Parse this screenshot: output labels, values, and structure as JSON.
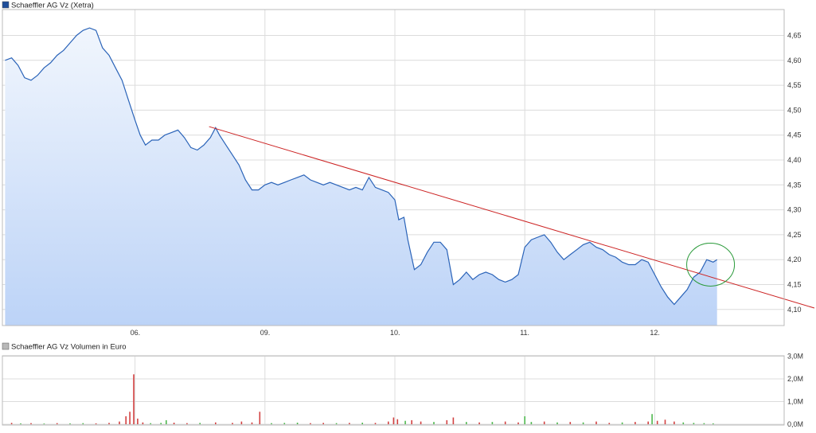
{
  "colors": {
    "price_line": "#2a63b8",
    "price_fill_top": "#f1f6fd",
    "price_fill_bottom": "#bcd3f7",
    "trend_line": "#cc2222",
    "highlight_circle": "#2a9a3a",
    "grid": "#dcdcdc",
    "vol_up": "#4fb84f",
    "vol_down": "#d24141",
    "price_legend_swatch": "#1f4e9a",
    "volume_legend_swatch": "#b8b8b8"
  },
  "chart_data": [
    {
      "type": "line",
      "title": "Schaeffler AG Vz (Xetra)",
      "x_tick_labels": [
        "06.",
        "09.",
        "10.",
        "11.",
        "12."
      ],
      "y_tick_labels": [
        "4,65",
        "4,60",
        "4,55",
        "4,50",
        "4,45",
        "4,40",
        "4,35",
        "4,30",
        "4,25",
        "4,20",
        "4,15",
        "4,10"
      ],
      "y_ticks": [
        4.65,
        4.6,
        4.55,
        4.5,
        4.45,
        4.4,
        4.35,
        4.3,
        4.25,
        4.2,
        4.15,
        4.1
      ],
      "ylim": [
        4.05,
        4.68
      ],
      "x_range": [
        0,
        6.15
      ],
      "x_unit": "trading days since start of window (day boundaries at 1,2,3,4,5)",
      "grid": true,
      "series": [
        {
          "values": [
            [
              0.0,
              4.6
            ],
            [
              0.05,
              4.605
            ],
            [
              0.1,
              4.59
            ],
            [
              0.15,
              4.565
            ],
            [
              0.2,
              4.56
            ],
            [
              0.25,
              4.57
            ],
            [
              0.3,
              4.585
            ],
            [
              0.35,
              4.595
            ],
            [
              0.4,
              4.61
            ],
            [
              0.45,
              4.62
            ],
            [
              0.5,
              4.635
            ],
            [
              0.55,
              4.65
            ],
            [
              0.6,
              4.66
            ],
            [
              0.65,
              4.665
            ],
            [
              0.7,
              4.66
            ],
            [
              0.75,
              4.625
            ],
            [
              0.8,
              4.61
            ],
            [
              0.85,
              4.585
            ],
            [
              0.9,
              4.56
            ],
            [
              0.95,
              4.52
            ],
            [
              1.0,
              4.48
            ],
            [
              1.04,
              4.45
            ],
            [
              1.08,
              4.43
            ],
            [
              1.13,
              4.44
            ],
            [
              1.18,
              4.44
            ],
            [
              1.23,
              4.45
            ],
            [
              1.28,
              4.455
            ],
            [
              1.33,
              4.46
            ],
            [
              1.38,
              4.445
            ],
            [
              1.43,
              4.425
            ],
            [
              1.48,
              4.42
            ],
            [
              1.53,
              4.43
            ],
            [
              1.58,
              4.445
            ],
            [
              1.62,
              4.465
            ],
            [
              1.65,
              4.45
            ],
            [
              1.7,
              4.43
            ],
            [
              1.75,
              4.41
            ],
            [
              1.8,
              4.39
            ],
            [
              1.85,
              4.36
            ],
            [
              1.9,
              4.34
            ],
            [
              1.95,
              4.34
            ],
            [
              2.0,
              4.35
            ],
            [
              2.05,
              4.355
            ],
            [
              2.1,
              4.35
            ],
            [
              2.15,
              4.355
            ],
            [
              2.2,
              4.36
            ],
            [
              2.25,
              4.365
            ],
            [
              2.3,
              4.37
            ],
            [
              2.35,
              4.36
            ],
            [
              2.4,
              4.355
            ],
            [
              2.45,
              4.35
            ],
            [
              2.5,
              4.355
            ],
            [
              2.55,
              4.35
            ],
            [
              2.6,
              4.345
            ],
            [
              2.65,
              4.34
            ],
            [
              2.7,
              4.345
            ],
            [
              2.75,
              4.34
            ],
            [
              2.8,
              4.365
            ],
            [
              2.85,
              4.345
            ],
            [
              2.9,
              4.34
            ],
            [
              2.95,
              4.335
            ],
            [
              3.0,
              4.32
            ],
            [
              3.03,
              4.28
            ],
            [
              3.07,
              4.285
            ],
            [
              3.1,
              4.24
            ],
            [
              3.15,
              4.18
            ],
            [
              3.2,
              4.19
            ],
            [
              3.25,
              4.215
            ],
            [
              3.3,
              4.235
            ],
            [
              3.35,
              4.235
            ],
            [
              3.4,
              4.22
            ],
            [
              3.45,
              4.15
            ],
            [
              3.5,
              4.16
            ],
            [
              3.55,
              4.175
            ],
            [
              3.6,
              4.16
            ],
            [
              3.65,
              4.17
            ],
            [
              3.7,
              4.175
            ],
            [
              3.75,
              4.17
            ],
            [
              3.8,
              4.16
            ],
            [
              3.85,
              4.155
            ],
            [
              3.9,
              4.16
            ],
            [
              3.95,
              4.17
            ],
            [
              4.0,
              4.225
            ],
            [
              4.05,
              4.24
            ],
            [
              4.1,
              4.245
            ],
            [
              4.15,
              4.25
            ],
            [
              4.2,
              4.235
            ],
            [
              4.25,
              4.215
            ],
            [
              4.3,
              4.2
            ],
            [
              4.35,
              4.21
            ],
            [
              4.4,
              4.22
            ],
            [
              4.45,
              4.23
            ],
            [
              4.5,
              4.235
            ],
            [
              4.55,
              4.225
            ],
            [
              4.6,
              4.22
            ],
            [
              4.65,
              4.21
            ],
            [
              4.7,
              4.205
            ],
            [
              4.75,
              4.195
            ],
            [
              4.8,
              4.19
            ],
            [
              4.85,
              4.19
            ],
            [
              4.9,
              4.2
            ],
            [
              4.95,
              4.195
            ],
            [
              5.0,
              4.17
            ],
            [
              5.05,
              4.145
            ],
            [
              5.1,
              4.125
            ],
            [
              5.15,
              4.11
            ],
            [
              5.2,
              4.125
            ],
            [
              5.25,
              4.14
            ],
            [
              5.3,
              4.165
            ],
            [
              5.35,
              4.175
            ],
            [
              5.4,
              4.2
            ],
            [
              5.45,
              4.195
            ],
            [
              5.48,
              4.2
            ]
          ]
        }
      ],
      "trendline": {
        "x": [
          1.57,
          6.15
        ],
        "y": [
          4.467,
          4.109
        ]
      },
      "highlight_circle": {
        "x": 5.43,
        "y": 4.19
      }
    },
    {
      "type": "bar",
      "title": "Schaeffler AG Vz Volumen in Euro",
      "y_tick_labels": [
        "3,0M",
        "2,0M",
        "1,0M",
        "0,0M"
      ],
      "y_ticks": [
        3.0,
        2.0,
        1.0,
        0.0
      ],
      "ylabel": "",
      "ylim": [
        0,
        3.0
      ],
      "x_range": [
        0,
        6.15
      ],
      "x_unit": "trading days",
      "grid": true,
      "values": [
        {
          "x": 0.05,
          "v": 0.06,
          "d": "down"
        },
        {
          "x": 0.12,
          "v": 0.04,
          "d": "up"
        },
        {
          "x": 0.2,
          "v": 0.05,
          "d": "down"
        },
        {
          "x": 0.3,
          "v": 0.03,
          "d": "up"
        },
        {
          "x": 0.4,
          "v": 0.05,
          "d": "down"
        },
        {
          "x": 0.5,
          "v": 0.04,
          "d": "up"
        },
        {
          "x": 0.6,
          "v": 0.05,
          "d": "up"
        },
        {
          "x": 0.7,
          "v": 0.04,
          "d": "down"
        },
        {
          "x": 0.8,
          "v": 0.06,
          "d": "down"
        },
        {
          "x": 0.88,
          "v": 0.12,
          "d": "down"
        },
        {
          "x": 0.93,
          "v": 0.35,
          "d": "down"
        },
        {
          "x": 0.96,
          "v": 0.55,
          "d": "down"
        },
        {
          "x": 0.99,
          "v": 2.2,
          "d": "down"
        },
        {
          "x": 1.02,
          "v": 0.25,
          "d": "down"
        },
        {
          "x": 1.06,
          "v": 0.08,
          "d": "down"
        },
        {
          "x": 1.12,
          "v": 0.05,
          "d": "up"
        },
        {
          "x": 1.2,
          "v": 0.06,
          "d": "up"
        },
        {
          "x": 1.24,
          "v": 0.18,
          "d": "up"
        },
        {
          "x": 1.3,
          "v": 0.07,
          "d": "down"
        },
        {
          "x": 1.4,
          "v": 0.05,
          "d": "down"
        },
        {
          "x": 1.5,
          "v": 0.06,
          "d": "up"
        },
        {
          "x": 1.62,
          "v": 0.08,
          "d": "down"
        },
        {
          "x": 1.75,
          "v": 0.06,
          "d": "down"
        },
        {
          "x": 1.82,
          "v": 0.12,
          "d": "down"
        },
        {
          "x": 1.9,
          "v": 0.08,
          "d": "down"
        },
        {
          "x": 1.96,
          "v": 0.55,
          "d": "down"
        },
        {
          "x": 2.05,
          "v": 0.05,
          "d": "up"
        },
        {
          "x": 2.15,
          "v": 0.06,
          "d": "up"
        },
        {
          "x": 2.25,
          "v": 0.07,
          "d": "up"
        },
        {
          "x": 2.35,
          "v": 0.05,
          "d": "down"
        },
        {
          "x": 2.45,
          "v": 0.06,
          "d": "down"
        },
        {
          "x": 2.55,
          "v": 0.05,
          "d": "up"
        },
        {
          "x": 2.65,
          "v": 0.06,
          "d": "down"
        },
        {
          "x": 2.75,
          "v": 0.07,
          "d": "up"
        },
        {
          "x": 2.85,
          "v": 0.06,
          "d": "down"
        },
        {
          "x": 2.95,
          "v": 0.12,
          "d": "down"
        },
        {
          "x": 2.99,
          "v": 0.3,
          "d": "down"
        },
        {
          "x": 3.02,
          "v": 0.22,
          "d": "down"
        },
        {
          "x": 3.08,
          "v": 0.15,
          "d": "up"
        },
        {
          "x": 3.13,
          "v": 0.18,
          "d": "down"
        },
        {
          "x": 3.2,
          "v": 0.12,
          "d": "down"
        },
        {
          "x": 3.3,
          "v": 0.1,
          "d": "up"
        },
        {
          "x": 3.4,
          "v": 0.18,
          "d": "down"
        },
        {
          "x": 3.45,
          "v": 0.3,
          "d": "down"
        },
        {
          "x": 3.55,
          "v": 0.1,
          "d": "up"
        },
        {
          "x": 3.65,
          "v": 0.08,
          "d": "down"
        },
        {
          "x": 3.75,
          "v": 0.1,
          "d": "up"
        },
        {
          "x": 3.85,
          "v": 0.12,
          "d": "down"
        },
        {
          "x": 3.95,
          "v": 0.08,
          "d": "down"
        },
        {
          "x": 4.0,
          "v": 0.35,
          "d": "up"
        },
        {
          "x": 4.05,
          "v": 0.1,
          "d": "up"
        },
        {
          "x": 4.15,
          "v": 0.12,
          "d": "down"
        },
        {
          "x": 4.25,
          "v": 0.08,
          "d": "up"
        },
        {
          "x": 4.35,
          "v": 0.1,
          "d": "down"
        },
        {
          "x": 4.45,
          "v": 0.08,
          "d": "up"
        },
        {
          "x": 4.55,
          "v": 0.12,
          "d": "down"
        },
        {
          "x": 4.65,
          "v": 0.06,
          "d": "down"
        },
        {
          "x": 4.75,
          "v": 0.08,
          "d": "up"
        },
        {
          "x": 4.85,
          "v": 0.1,
          "d": "down"
        },
        {
          "x": 4.95,
          "v": 0.12,
          "d": "down"
        },
        {
          "x": 4.98,
          "v": 0.45,
          "d": "up"
        },
        {
          "x": 5.02,
          "v": 0.15,
          "d": "down"
        },
        {
          "x": 5.08,
          "v": 0.2,
          "d": "down"
        },
        {
          "x": 5.15,
          "v": 0.12,
          "d": "down"
        },
        {
          "x": 5.22,
          "v": 0.08,
          "d": "up"
        },
        {
          "x": 5.3,
          "v": 0.06,
          "d": "up"
        },
        {
          "x": 5.38,
          "v": 0.05,
          "d": "up"
        },
        {
          "x": 5.45,
          "v": 0.04,
          "d": "up"
        }
      ]
    }
  ]
}
